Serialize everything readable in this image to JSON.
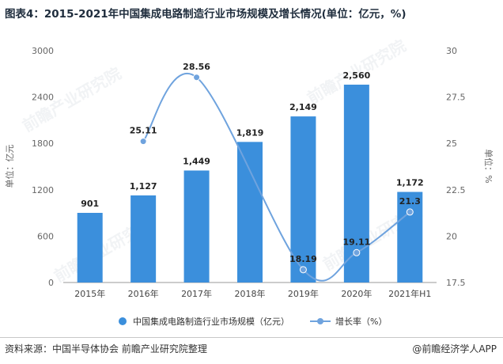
{
  "title": "图表4：2015-2021年中国集成电路制造行业市场规模及增长情况(单位：亿元，%)",
  "source": "资料来源：中国半导体协会 前瞻产业研究院整理",
  "brand": "@前瞻经济学人APP",
  "watermark": "前瞻产业研究院",
  "colors": {
    "bar": "#3b8fdc",
    "line": "#6fa3de",
    "axis_text": "#666666"
  },
  "legend": {
    "bar_label": "中国集成电路制造行业市场规模（亿元）",
    "line_label": "增长率（%）"
  },
  "chart_data": {
    "type": "bar",
    "categories": [
      "2015年",
      "2016年",
      "2017年",
      "2018年",
      "2019年",
      "2020年",
      "2021年H1"
    ],
    "series": [
      {
        "name": "中国集成电路制造行业市场规模（亿元）",
        "type": "bar",
        "values": [
          901,
          1127,
          1449,
          1819,
          2149,
          2560,
          1172
        ],
        "labels": [
          "901",
          "1,127",
          "1,449",
          "1,819",
          "2,149",
          "2,560",
          "1,172"
        ]
      },
      {
        "name": "增长率（%）",
        "type": "line",
        "axis": "right",
        "values": [
          null,
          25.11,
          28.56,
          null,
          18.19,
          19.11,
          21.3
        ],
        "labels": [
          "",
          "25.11",
          "28.56",
          "",
          "18.19",
          "19.11",
          "21.3"
        ]
      }
    ],
    "ylabel": "单位：亿元",
    "y2label": "单位：%",
    "ylim": [
      0,
      3000
    ],
    "yticks": [
      "0",
      "600",
      "1200",
      "1800",
      "2400",
      "3000"
    ],
    "y2lim": [
      17.5,
      30
    ],
    "y2ticks": [
      "17.5",
      "20",
      "22.5",
      "25",
      "27.5",
      "30"
    ],
    "grid": false,
    "legend_position": "bottom"
  }
}
